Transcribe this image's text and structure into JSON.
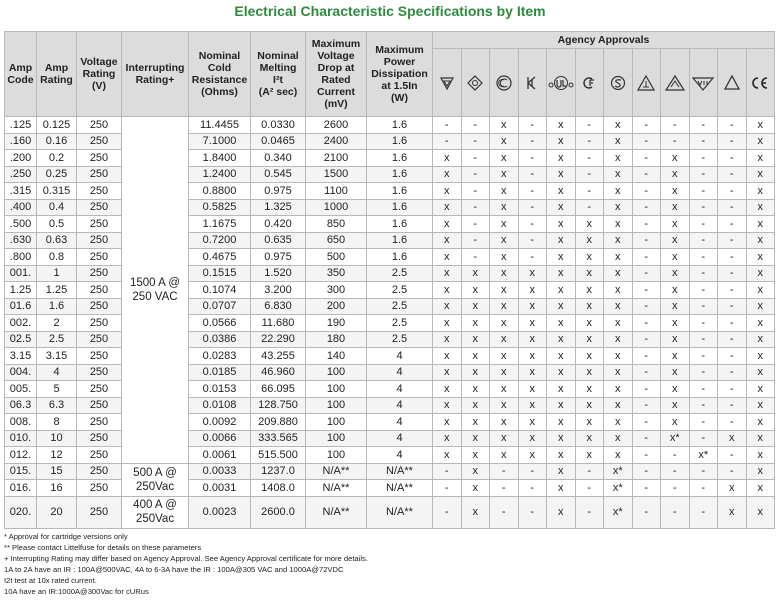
{
  "title": "Electrical Characteristic Specifications by Item",
  "table": {
    "headers": [
      "Amp\nCode",
      "Amp\nRating",
      "Voltage\nRating\n(V)",
      "Interrupting\nRating+",
      "Nominal\nCold\nResistance\n(Ohms)",
      "Nominal\nMelting\nI²t\n(A² sec)",
      "Maximum\nVoltage\nDrop at\nRated\nCurrent\n(mV)",
      "Maximum\nPower\nDissipation\nat 1.5In\n(W)"
    ],
    "agency_header": "Agency Approvals",
    "groups": [
      {
        "interrupting": "1500 A @\n250 VAC",
        "rows": [
          [
            ".125",
            "0.125",
            "250",
            "11.4455",
            "0.0330",
            "2600",
            "1.6",
            "-",
            "-",
            "x",
            "-",
            "x",
            "-",
            "x",
            "-",
            "-",
            "-",
            "-",
            "x"
          ],
          [
            ".160",
            "0.16",
            "250",
            "7.1000",
            "0.0465",
            "2400",
            "1.6",
            "-",
            "-",
            "x",
            "-",
            "x",
            "-",
            "x",
            "-",
            "-",
            "-",
            "-",
            "x"
          ],
          [
            ".200",
            "0.2",
            "250",
            "1.8400",
            "0.340",
            "2100",
            "1.6",
            "x",
            "-",
            "x",
            "-",
            "x",
            "-",
            "x",
            "-",
            "x",
            "-",
            "-",
            "x"
          ],
          [
            ".250",
            "0.25",
            "250",
            "1.2400",
            "0.545",
            "1500",
            "1.6",
            "x",
            "-",
            "x",
            "-",
            "x",
            "-",
            "x",
            "-",
            "x",
            "-",
            "-",
            "x"
          ],
          [
            ".315",
            "0.315",
            "250",
            "0.8800",
            "0.975",
            "1100",
            "1.6",
            "x",
            "-",
            "x",
            "-",
            "x",
            "-",
            "x",
            "-",
            "x",
            "-",
            "-",
            "x"
          ],
          [
            ".400",
            "0.4",
            "250",
            "0.5825",
            "1.325",
            "1000",
            "1.6",
            "x",
            "-",
            "x",
            "-",
            "x",
            "-",
            "x",
            "-",
            "x",
            "-",
            "-",
            "x"
          ],
          [
            ".500",
            "0.5",
            "250",
            "1.1675",
            "0.420",
            "850",
            "1.6",
            "x",
            "-",
            "x",
            "-",
            "x",
            "x",
            "x",
            "-",
            "x",
            "-",
            "-",
            "x"
          ],
          [
            ".630",
            "0.63",
            "250",
            "0.7200",
            "0.635",
            "650",
            "1.6",
            "x",
            "-",
            "x",
            "-",
            "x",
            "x",
            "x",
            "-",
            "x",
            "-",
            "-",
            "x"
          ],
          [
            ".800",
            "0.8",
            "250",
            "0.4675",
            "0.975",
            "500",
            "1.6",
            "x",
            "-",
            "x",
            "-",
            "x",
            "x",
            "x",
            "-",
            "x",
            "-",
            "-",
            "x"
          ],
          [
            "001.",
            "1",
            "250",
            "0.1515",
            "1.520",
            "350",
            "2.5",
            "x",
            "x",
            "x",
            "x",
            "x",
            "x",
            "x",
            "-",
            "x",
            "-",
            "-",
            "x"
          ],
          [
            "1.25",
            "1.25",
            "250",
            "0.1074",
            "3.200",
            "300",
            "2.5",
            "x",
            "x",
            "x",
            "x",
            "x",
            "x",
            "x",
            "-",
            "x",
            "-",
            "-",
            "x"
          ],
          [
            "01.6",
            "1.6",
            "250",
            "0.0707",
            "6.830",
            "200",
            "2.5",
            "x",
            "x",
            "x",
            "x",
            "x",
            "x",
            "x",
            "-",
            "x",
            "-",
            "-",
            "x"
          ],
          [
            "002.",
            "2",
            "250",
            "0.0566",
            "11.680",
            "190",
            "2.5",
            "x",
            "x",
            "x",
            "x",
            "x",
            "x",
            "x",
            "-",
            "x",
            "-",
            "-",
            "x"
          ],
          [
            "02.5",
            "2.5",
            "250",
            "0.0386",
            "22.290",
            "180",
            "2.5",
            "x",
            "x",
            "x",
            "x",
            "x",
            "x",
            "x",
            "-",
            "x",
            "-",
            "-",
            "x"
          ],
          [
            "3.15",
            "3.15",
            "250",
            "0.0283",
            "43.255",
            "140",
            "4",
            "x",
            "x",
            "x",
            "x",
            "x",
            "x",
            "x",
            "-",
            "x",
            "-",
            "-",
            "x"
          ],
          [
            "004.",
            "4",
            "250",
            "0.0185",
            "46.960",
            "100",
            "4",
            "x",
            "x",
            "x",
            "x",
            "x",
            "x",
            "x",
            "-",
            "x",
            "-",
            "-",
            "x"
          ],
          [
            "005.",
            "5",
            "250",
            "0.0153",
            "66.095",
            "100",
            "4",
            "x",
            "x",
            "x",
            "x",
            "x",
            "x",
            "x",
            "-",
            "x",
            "-",
            "-",
            "x"
          ],
          [
            "06.3",
            "6.3",
            "250",
            "0.0108",
            "128.750",
            "100",
            "4",
            "x",
            "x",
            "x",
            "x",
            "x",
            "x",
            "x",
            "-",
            "x",
            "-",
            "-",
            "x"
          ],
          [
            "008.",
            "8",
            "250",
            "0.0092",
            "209.880",
            "100",
            "4",
            "x",
            "x",
            "x",
            "x",
            "x",
            "x",
            "x",
            "-",
            "x",
            "-",
            "-",
            "x"
          ],
          [
            "010.",
            "10",
            "250",
            "0.0066",
            "333.565",
            "100",
            "4",
            "x",
            "x",
            "x",
            "x",
            "x",
            "x",
            "x",
            "-",
            "x*",
            "-",
            "x",
            "x"
          ],
          [
            "012.",
            "12",
            "250",
            "0.0061",
            "515.500",
            "100",
            "4",
            "x",
            "x",
            "x",
            "x",
            "x",
            "x",
            "x",
            "-",
            "-",
            "x*",
            "-",
            "x"
          ]
        ]
      },
      {
        "interrupting": "500 A @\n250Vac",
        "rows": [
          [
            "015.",
            "15",
            "250",
            "0.0033",
            "1237.0",
            "N/A**",
            "N/A**",
            "-",
            "x",
            "-",
            "-",
            "x",
            "-",
            "x*",
            "-",
            "-",
            "-",
            "-",
            "x"
          ],
          [
            "016.",
            "16",
            "250",
            "0.0031",
            "1408.0",
            "N/A**",
            "N/A**",
            "-",
            "x",
            "-",
            "-",
            "x",
            "-",
            "x*",
            "-",
            "-",
            "-",
            "x",
            "x"
          ]
        ]
      },
      {
        "interrupting": "400 A @\n250Vac",
        "rows": [
          [
            "020.",
            "20",
            "250",
            "0.0023",
            "2600.0",
            "N/A**",
            "N/A**",
            "-",
            "x",
            "-",
            "-",
            "x",
            "-",
            "x*",
            "-",
            "-",
            "-",
            "x",
            "x"
          ]
        ]
      }
    ]
  },
  "footnotes": [
    "* Approval for cartridge versions only",
    "** Please contact Littelfuse for details on these parameters",
    "+ Interrupting Rating may differ based on Agency Approval.  See Agency Approval certificate for more details.",
    "1A to 2A have an IR : 100A@500VAC, 4A to 6-3A have the IR : 100A@305 VAC and 1000A@72VDC",
    "I2t test at 10x rated current.",
    "10A have an IR:1000A@300Vac for cURus"
  ]
}
